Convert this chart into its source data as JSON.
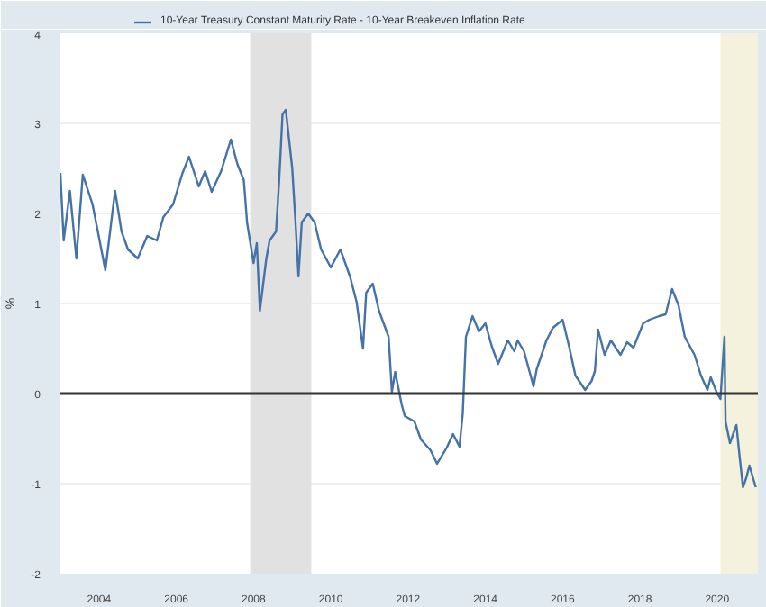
{
  "chart_data": {
    "type": "line",
    "ylabel": "%",
    "legend": "top left",
    "grid": "y",
    "xlim": [
      "2003-01-01",
      "2021-01-20"
    ],
    "ylim": [
      -2,
      4
    ],
    "yticks": [
      -2,
      -1,
      0,
      1,
      2,
      3,
      4
    ],
    "xticks": [
      {
        "value": "2004-01-01",
        "label": "2004"
      },
      {
        "value": "2006-01-01",
        "label": "2006"
      },
      {
        "value": "2008-01-01",
        "label": "2008"
      },
      {
        "value": "2010-01-01",
        "label": "2010"
      },
      {
        "value": "2012-01-01",
        "label": "2012"
      },
      {
        "value": "2014-01-01",
        "label": "2014"
      },
      {
        "value": "2016-01-01",
        "label": "2016"
      },
      {
        "value": "2018-01-01",
        "label": "2018"
      },
      {
        "value": "2020-01-01",
        "label": "2020"
      }
    ],
    "x": [
      "2003-01",
      "2003-02",
      "2003-04",
      "2003-06",
      "2003-08",
      "2003-11",
      "2004-03",
      "2004-06",
      "2004-08",
      "2004-10",
      "2005-01",
      "2005-04",
      "2005-07",
      "2005-09",
      "2005-12",
      "2006-03",
      "2006-05",
      "2006-08",
      "2006-10",
      "2006-12",
      "2007-03",
      "2007-06",
      "2007-08",
      "2007-10",
      "2007-11",
      "2008-01",
      "2008-02",
      "2008-03",
      "2008-05",
      "2008-06",
      "2008-08",
      "2008-09",
      "2008-10",
      "2008-11",
      "2009-01",
      "2009-02",
      "2009-03",
      "2009-04",
      "2009-06",
      "2009-08",
      "2009-10",
      "2010-01",
      "2010-04",
      "2010-07",
      "2010-09",
      "2010-11",
      "2010-12",
      "2011-02",
      "2011-04",
      "2011-07",
      "2011-08",
      "2011-09",
      "2011-11",
      "2011-12",
      "2012-03",
      "2012-05",
      "2012-08",
      "2012-10",
      "2013-01",
      "2013-03",
      "2013-05",
      "2013-06",
      "2013-07",
      "2013-09",
      "2013-11",
      "2014-01",
      "2014-03",
      "2014-05",
      "2014-08",
      "2014-10",
      "2014-11",
      "2015-01",
      "2015-04",
      "2015-05",
      "2015-08",
      "2015-10",
      "2016-01",
      "2016-03",
      "2016-05",
      "2016-08",
      "2016-10",
      "2016-11",
      "2016-12",
      "2017-02",
      "2017-04",
      "2017-07",
      "2017-09",
      "2017-11",
      "2018-02",
      "2018-04",
      "2018-07",
      "2018-09",
      "2018-11",
      "2019-01",
      "2019-03",
      "2019-06",
      "2019-08",
      "2019-10",
      "2019-11",
      "2020-01",
      "2020-02",
      "2020-03-10",
      "2020-03-20",
      "2020-05",
      "2020-07",
      "2020-08",
      "2020-09",
      "2020-10",
      "2020-11",
      "2020-12-31"
    ],
    "series": [
      {
        "name": "10-Year Treasury Constant Maturity Rate - 10-Year Breakeven Inflation Rate",
        "color": "#4572a7",
        "values": [
          2.45,
          1.7,
          2.25,
          1.5,
          2.43,
          2.1,
          1.37,
          2.25,
          1.8,
          1.6,
          1.5,
          1.75,
          1.7,
          1.96,
          2.1,
          2.45,
          2.63,
          2.3,
          2.47,
          2.24,
          2.47,
          2.82,
          2.55,
          2.37,
          1.9,
          1.45,
          1.67,
          0.92,
          1.5,
          1.7,
          1.8,
          2.4,
          3.1,
          3.15,
          2.5,
          1.9,
          1.3,
          1.9,
          2.0,
          1.9,
          1.6,
          1.4,
          1.6,
          1.3,
          1.02,
          0.5,
          1.12,
          1.22,
          0.92,
          0.63,
          0.02,
          0.24,
          -0.12,
          -0.25,
          -0.31,
          -0.51,
          -0.63,
          -0.78,
          -0.6,
          -0.45,
          -0.59,
          -0.22,
          0.63,
          0.86,
          0.69,
          0.78,
          0.53,
          0.33,
          0.59,
          0.47,
          0.59,
          0.47,
          0.08,
          0.27,
          0.59,
          0.73,
          0.82,
          0.53,
          0.2,
          0.04,
          0.14,
          0.25,
          0.71,
          0.43,
          0.59,
          0.43,
          0.57,
          0.51,
          0.78,
          0.82,
          0.86,
          0.88,
          1.16,
          0.98,
          0.63,
          0.43,
          0.2,
          0.04,
          0.18,
          0,
          -0.06,
          0.63,
          -0.31,
          -0.55,
          -0.35,
          -0.71,
          -1.04,
          -0.94,
          -0.8,
          -1.04
        ]
      }
    ],
    "ref_lines": [
      {
        "axis": "y",
        "value": 0,
        "color": "#333333"
      }
    ],
    "bands": [
      {
        "axis": "x",
        "from": "2007-12-01",
        "to": "2009-06-30",
        "color": "#e1e1e1"
      },
      {
        "axis": "x",
        "from": "2020-02-01",
        "to": "2021-01-20",
        "color": "#f4f2dc"
      }
    ]
  }
}
